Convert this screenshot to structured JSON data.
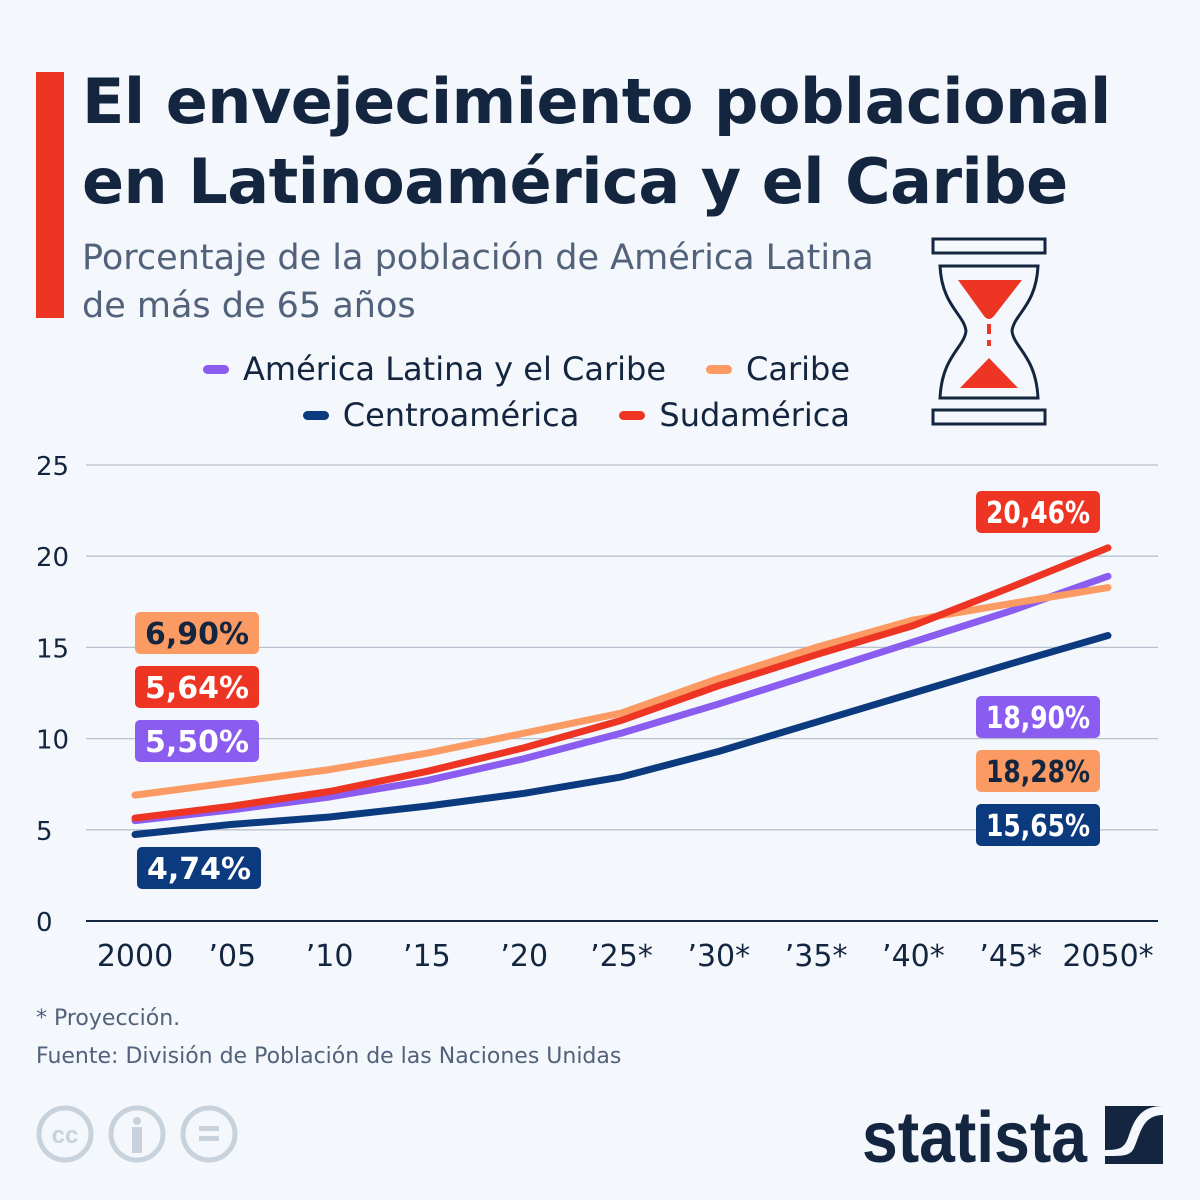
{
  "header": {
    "title_line1": "El envejecimiento poblacional",
    "title_line2": "en Latinoamérica y el Caribe",
    "subtitle_line1": "Porcentaje de la población de América Latina",
    "subtitle_line2": "de más de 65 años",
    "icon": "hourglass-icon"
  },
  "colors": {
    "accent": "#ee3524",
    "navy": "#0b3a7e",
    "purple": "#8a5cf0",
    "orange": "#fb9a62",
    "red": "#ee3524",
    "text": "#13253f"
  },
  "chart_data": {
    "type": "line",
    "title": "Porcentaje de la población de América Latina de más de 65 años",
    "x": [
      "2000",
      "’05",
      "’10",
      "’15",
      "’20",
      "’25*",
      "’30*",
      "’35*",
      "’40*",
      "’45*",
      "2050*"
    ],
    "ylim": [
      0,
      25
    ],
    "yticks": [
      0,
      5,
      10,
      15,
      20,
      25
    ],
    "grid": true,
    "legend_placement": "top",
    "series": [
      {
        "name": "América Latina y el Caribe",
        "color": "#8a5cf0",
        "values": [
          5.5,
          6.1,
          6.8,
          7.7,
          8.9,
          10.3,
          11.9,
          13.6,
          15.3,
          17.0,
          18.9
        ],
        "start_label": "5,50%",
        "end_label": "18,90%",
        "label_text_color": "#ffffff"
      },
      {
        "name": "Caribe",
        "color": "#fb9a62",
        "values": [
          6.9,
          7.6,
          8.3,
          9.2,
          10.3,
          11.4,
          13.3,
          15.0,
          16.5,
          17.4,
          18.28
        ],
        "start_label": "6,90%",
        "end_label": "18,28%",
        "label_text_color": "#13253f"
      },
      {
        "name": "Centroamérica",
        "color": "#0b3a7e",
        "values": [
          4.74,
          5.3,
          5.7,
          6.3,
          7.0,
          7.9,
          9.3,
          10.9,
          12.5,
          14.1,
          15.65
        ],
        "start_label": "4,74%",
        "end_label": "15,65%",
        "label_text_color": "#ffffff"
      },
      {
        "name": "Sudamérica",
        "color": "#ee3524",
        "values": [
          5.64,
          6.3,
          7.1,
          8.2,
          9.5,
          11.0,
          12.9,
          14.6,
          16.2,
          18.3,
          20.46
        ],
        "start_label": "5,64%",
        "end_label": "20,46%",
        "label_text_color": "#ffffff"
      }
    ]
  },
  "footer": {
    "note": "* Proyección.",
    "source": "Fuente: División de Población de las Naciones Unidas",
    "license_icons": [
      "cc-icon",
      "attribution-icon",
      "no-derivatives-icon"
    ],
    "brand": "statista"
  }
}
